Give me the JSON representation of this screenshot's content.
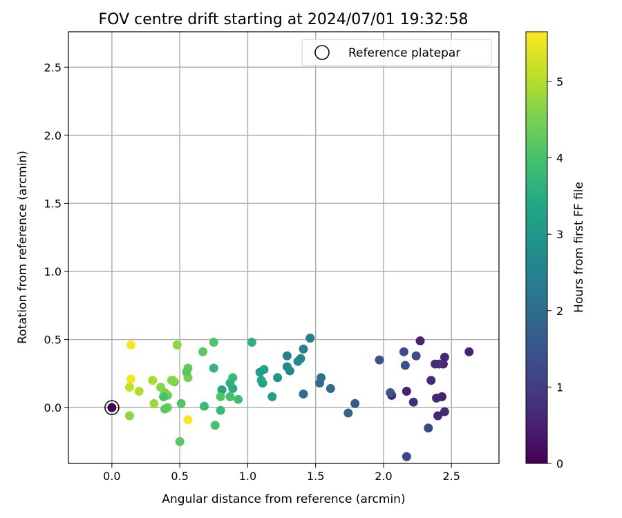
{
  "chart_data": {
    "type": "scatter",
    "title": "FOV centre drift starting at 2024/07/01 19:32:58",
    "xlabel": "Angular distance from reference (arcmin)",
    "ylabel": "Rotation from reference (arcmin)",
    "xlim": [
      -0.32,
      2.85
    ],
    "ylim": [
      -0.41,
      2.76
    ],
    "xticks": [
      0.0,
      0.5,
      1.0,
      1.5,
      2.0,
      2.5
    ],
    "xtick_labels": [
      "0.0",
      "0.5",
      "1.0",
      "1.5",
      "2.0",
      "2.5"
    ],
    "yticks": [
      0.0,
      0.5,
      1.0,
      1.5,
      2.0,
      2.5
    ],
    "ytick_labels": [
      "0.0",
      "0.5",
      "1.0",
      "1.5",
      "2.0",
      "2.5"
    ],
    "grid": true,
    "legend": {
      "placement": "upper right",
      "label": "Reference platepar"
    },
    "reference_point": {
      "x": 0.0,
      "y": 0.0
    },
    "colorbar": {
      "label": "Hours from first FF file",
      "colormap": "viridis",
      "range": [
        0,
        5.65
      ],
      "ticks": [
        0,
        1,
        2,
        3,
        4,
        5
      ],
      "tick_labels": [
        "0",
        "1",
        "2",
        "3",
        "4",
        "5"
      ]
    },
    "series": [
      {
        "points": [
          {
            "x": 0.0,
            "y": 0.0,
            "h": 0.02
          },
          {
            "x": 2.63,
            "y": 0.41,
            "h": 0.55
          },
          {
            "x": 2.45,
            "y": 0.37,
            "h": 0.6
          },
          {
            "x": 2.44,
            "y": 0.32,
            "h": 0.65
          },
          {
            "x": 2.45,
            "y": -0.03,
            "h": 0.65
          },
          {
            "x": 2.43,
            "y": 0.08,
            "h": 0.5
          },
          {
            "x": 2.4,
            "y": -0.06,
            "h": 0.6
          },
          {
            "x": 2.39,
            "y": 0.07,
            "h": 0.6
          },
          {
            "x": 2.41,
            "y": 0.32,
            "h": 0.8
          },
          {
            "x": 2.38,
            "y": 0.32,
            "h": 0.7
          },
          {
            "x": 2.35,
            "y": 0.2,
            "h": 0.65
          },
          {
            "x": 2.33,
            "y": -0.15,
            "h": 1.2
          },
          {
            "x": 2.27,
            "y": 0.49,
            "h": 0.55
          },
          {
            "x": 2.24,
            "y": 0.38,
            "h": 1.3
          },
          {
            "x": 2.22,
            "y": 0.04,
            "h": 0.75
          },
          {
            "x": 2.17,
            "y": 0.12,
            "h": 0.55
          },
          {
            "x": 2.17,
            "y": -0.36,
            "h": 1.2
          },
          {
            "x": 2.16,
            "y": 0.31,
            "h": 1.4
          },
          {
            "x": 2.15,
            "y": 0.41,
            "h": 1.3
          },
          {
            "x": 2.06,
            "y": 0.09,
            "h": 0.55
          },
          {
            "x": 2.05,
            "y": 0.11,
            "h": 1.5
          },
          {
            "x": 1.97,
            "y": 0.35,
            "h": 1.4
          },
          {
            "x": 1.79,
            "y": 0.03,
            "h": 1.55
          },
          {
            "x": 1.74,
            "y": -0.04,
            "h": 1.85
          },
          {
            "x": 1.61,
            "y": 0.14,
            "h": 2.0
          },
          {
            "x": 1.54,
            "y": 0.22,
            "h": 2.1
          },
          {
            "x": 1.53,
            "y": 0.18,
            "h": 2.0
          },
          {
            "x": 1.46,
            "y": 0.51,
            "h": 2.4
          },
          {
            "x": 1.41,
            "y": 0.43,
            "h": 2.5
          },
          {
            "x": 1.41,
            "y": 0.1,
            "h": 2.0
          },
          {
            "x": 1.39,
            "y": 0.36,
            "h": 2.7
          },
          {
            "x": 1.37,
            "y": 0.34,
            "h": 2.6
          },
          {
            "x": 1.31,
            "y": 0.27,
            "h": 2.5
          },
          {
            "x": 1.29,
            "y": 0.38,
            "h": 2.4
          },
          {
            "x": 1.29,
            "y": 0.3,
            "h": 2.6
          },
          {
            "x": 1.22,
            "y": 0.22,
            "h": 2.9
          },
          {
            "x": 1.18,
            "y": 0.08,
            "h": 3.2
          },
          {
            "x": 1.12,
            "y": 0.28,
            "h": 3.3
          },
          {
            "x": 1.11,
            "y": 0.18,
            "h": 3.1
          },
          {
            "x": 1.1,
            "y": 0.2,
            "h": 3.4
          },
          {
            "x": 1.09,
            "y": 0.26,
            "h": 3.2
          },
          {
            "x": 1.03,
            "y": 0.48,
            "h": 3.6
          },
          {
            "x": 0.93,
            "y": 0.06,
            "h": 3.9
          },
          {
            "x": 0.89,
            "y": 0.22,
            "h": 3.8
          },
          {
            "x": 0.89,
            "y": 0.14,
            "h": 3.5
          },
          {
            "x": 0.87,
            "y": 0.18,
            "h": 3.6
          },
          {
            "x": 0.87,
            "y": 0.08,
            "h": 4.0
          },
          {
            "x": 0.81,
            "y": 0.13,
            "h": 3.3
          },
          {
            "x": 0.8,
            "y": 0.08,
            "h": 4.1
          },
          {
            "x": 0.8,
            "y": -0.02,
            "h": 3.8
          },
          {
            "x": 0.76,
            "y": -0.13,
            "h": 4.0
          },
          {
            "x": 0.75,
            "y": 0.48,
            "h": 4.1
          },
          {
            "x": 0.75,
            "y": 0.29,
            "h": 3.7
          },
          {
            "x": 0.68,
            "y": 0.01,
            "h": 3.8
          },
          {
            "x": 0.67,
            "y": 0.41,
            "h": 4.2
          },
          {
            "x": 0.56,
            "y": 0.29,
            "h": 4.3
          },
          {
            "x": 0.56,
            "y": 0.22,
            "h": 4.5
          },
          {
            "x": 0.56,
            "y": -0.09,
            "h": 5.6
          },
          {
            "x": 0.55,
            "y": 0.26,
            "h": 4.2
          },
          {
            "x": 0.51,
            "y": 0.03,
            "h": 4.1
          },
          {
            "x": 0.5,
            "y": -0.25,
            "h": 4.2
          },
          {
            "x": 0.48,
            "y": 0.46,
            "h": 4.7
          },
          {
            "x": 0.46,
            "y": 0.19,
            "h": 4.2
          },
          {
            "x": 0.45,
            "y": 0.2,
            "h": 4.9
          },
          {
            "x": 0.44,
            "y": 0.2,
            "h": 4.6
          },
          {
            "x": 0.41,
            "y": 0.09,
            "h": 4.4
          },
          {
            "x": 0.41,
            "y": 0.0,
            "h": 4.4
          },
          {
            "x": 0.39,
            "y": 0.11,
            "h": 4.5
          },
          {
            "x": 0.39,
            "y": -0.01,
            "h": 4.2
          },
          {
            "x": 0.38,
            "y": 0.08,
            "h": 4.0
          },
          {
            "x": 0.36,
            "y": 0.15,
            "h": 4.6
          },
          {
            "x": 0.31,
            "y": 0.03,
            "h": 4.8
          },
          {
            "x": 0.3,
            "y": 0.2,
            "h": 4.9
          },
          {
            "x": 0.2,
            "y": 0.12,
            "h": 5.0
          },
          {
            "x": 0.14,
            "y": 0.46,
            "h": 5.6
          },
          {
            "x": 0.14,
            "y": 0.21,
            "h": 5.6
          },
          {
            "x": 0.13,
            "y": 0.15,
            "h": 5.1
          },
          {
            "x": 0.13,
            "y": -0.06,
            "h": 4.7
          }
        ]
      }
    ]
  }
}
